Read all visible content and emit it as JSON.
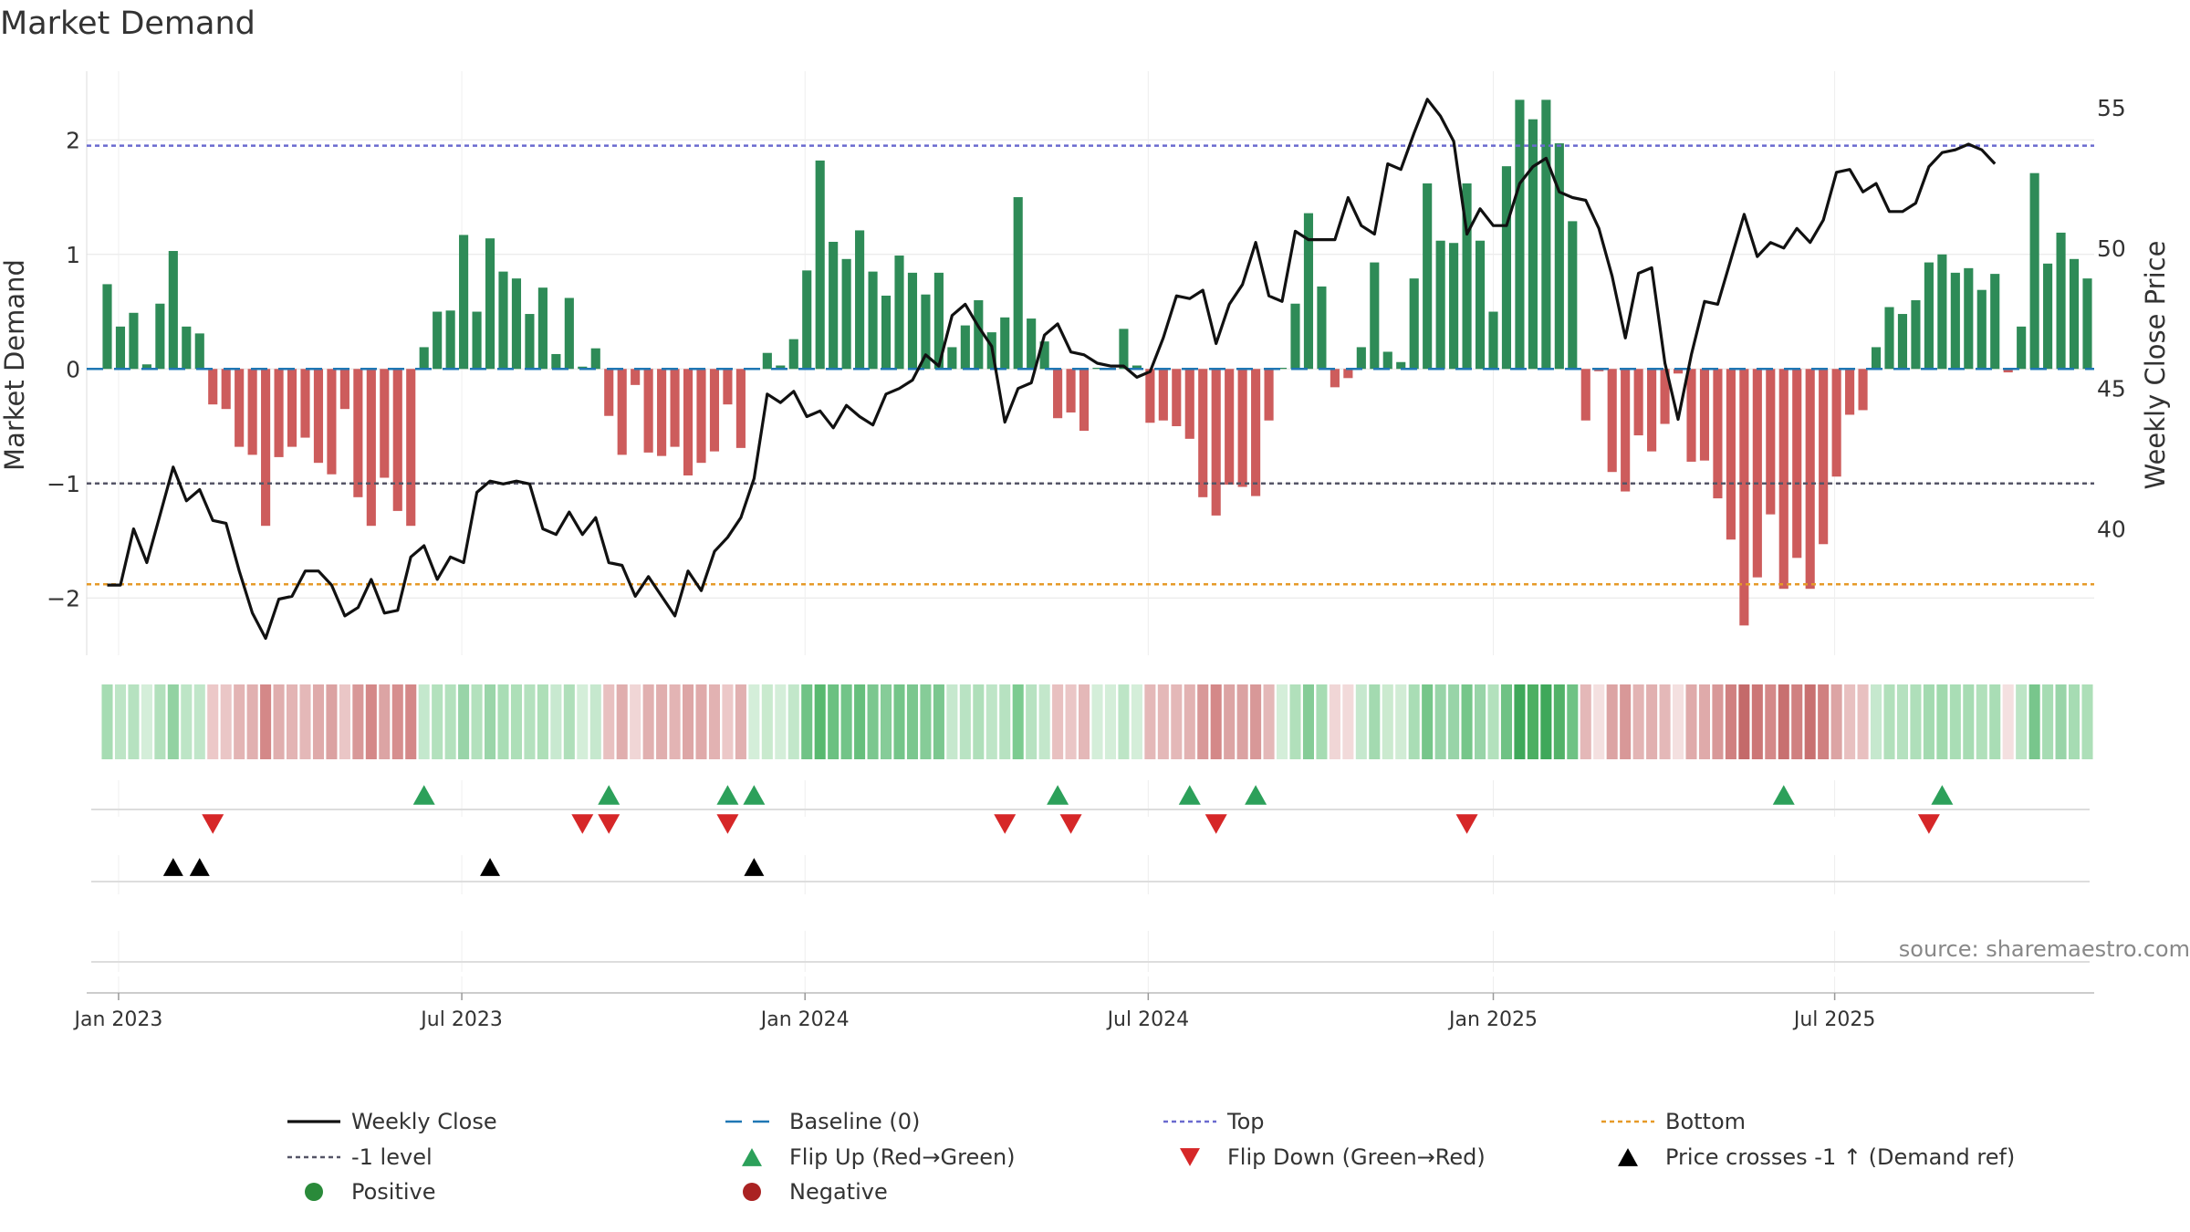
{
  "chart_data": {
    "type": "bar",
    "title": "Market Demand",
    "ylabel_left": "Market Demand",
    "ylabel_right": "Weekly Close Price",
    "ylim_left": [
      -2.5,
      2.6
    ],
    "ylim_right": [
      35.5,
      56.3
    ],
    "yticks_left": [
      -2,
      -1,
      0,
      1,
      2
    ],
    "yticks_left_labels": [
      "−2",
      "−1",
      "0",
      "1",
      "2"
    ],
    "yticks_right": [
      40,
      45,
      50,
      55
    ],
    "yticks_right_labels": [
      "40",
      "45",
      "50",
      "55"
    ],
    "x_start": "2022-12-26",
    "x_end": "2025-09-22",
    "xtick_labels": [
      "Jan 2023",
      "Jul 2023",
      "Jan 2024",
      "Jul 2024",
      "Jan 2025",
      "Jul 2025"
    ],
    "xtick_weeks": [
      0.86,
      26.86,
      52.86,
      78.86,
      105.0,
      130.86
    ],
    "top_level": 1.95,
    "minus1_level": -1.0,
    "bottom_level": -1.88,
    "demand": [
      0.74,
      0.37,
      0.49,
      0.04,
      0.57,
      1.03,
      0.37,
      0.31,
      -0.31,
      -0.35,
      -0.68,
      -0.75,
      -1.37,
      -0.77,
      -0.68,
      -0.6,
      -0.82,
      -0.92,
      -0.35,
      -1.12,
      -1.37,
      -0.95,
      -1.24,
      -1.37,
      0.19,
      0.5,
      0.51,
      1.17,
      0.5,
      1.14,
      0.85,
      0.79,
      0.48,
      0.71,
      0.13,
      0.62,
      0.02,
      0.18,
      -0.41,
      -0.75,
      -0.14,
      -0.73,
      -0.76,
      -0.68,
      -0.93,
      -0.82,
      -0.72,
      -0.31,
      -0.69,
      0.01,
      0.14,
      0.03,
      0.26,
      0.86,
      1.82,
      1.11,
      0.96,
      1.21,
      0.85,
      0.64,
      0.99,
      0.84,
      0.65,
      0.84,
      0.19,
      0.38,
      0.6,
      0.32,
      0.45,
      1.5,
      0.44,
      0.24,
      -0.43,
      -0.38,
      -0.54,
      0.01,
      0.01,
      0.35,
      0.03,
      -0.47,
      -0.45,
      -0.5,
      -0.61,
      -1.12,
      -1.28,
      -1.01,
      -1.03,
      -1.11,
      -0.45,
      0.01,
      0.57,
      1.36,
      0.72,
      -0.16,
      -0.08,
      0.19,
      0.93,
      0.15,
      0.06,
      0.79,
      1.62,
      1.12,
      1.1,
      1.62,
      1.12,
      0.5,
      1.77,
      2.35,
      2.18,
      2.35,
      1.97,
      1.29,
      -0.45,
      -0.02,
      -0.9,
      -1.07,
      -0.58,
      -0.72,
      -0.48,
      -0.04,
      -0.81,
      -0.8,
      -1.13,
      -1.49,
      -2.24,
      -1.82,
      -1.27,
      -1.92,
      -1.65,
      -1.92,
      -1.53,
      -0.94,
      -0.4,
      -0.36,
      0.19,
      0.54,
      0.48,
      0.6,
      0.93,
      1.0,
      0.84,
      0.88,
      0.69,
      0.83,
      -0.03,
      0.37,
      1.71,
      0.92,
      1.19,
      0.96,
      0.79
    ],
    "price": [
      38.0,
      38.0,
      40.0,
      38.8,
      40.5,
      42.2,
      41.0,
      41.4,
      40.3,
      40.2,
      38.5,
      37.0,
      36.1,
      37.5,
      37.6,
      38.5,
      38.5,
      38.0,
      36.9,
      37.2,
      38.2,
      37.0,
      37.1,
      39.0,
      39.4,
      38.2,
      39.0,
      38.8,
      41.3,
      41.7,
      41.6,
      41.7,
      41.6,
      40.0,
      39.8,
      40.6,
      39.8,
      40.4,
      38.8,
      38.7,
      37.6,
      38.3,
      37.6,
      36.9,
      38.5,
      37.8,
      39.2,
      39.7,
      40.4,
      41.8,
      44.8,
      44.5,
      44.9,
      44.0,
      44.2,
      43.6,
      44.4,
      44.0,
      43.7,
      44.8,
      45.0,
      45.3,
      46.2,
      45.8,
      47.6,
      48.0,
      47.2,
      46.5,
      43.8,
      45.0,
      45.2,
      46.9,
      47.3,
      46.3,
      46.2,
      45.9,
      45.8,
      45.8,
      45.4,
      45.6,
      46.8,
      48.3,
      48.2,
      48.5,
      46.6,
      48.0,
      48.7,
      50.2,
      48.3,
      48.1,
      50.6,
      50.3,
      50.3,
      50.3,
      51.8,
      50.8,
      50.5,
      53.0,
      52.8,
      54.1,
      55.3,
      54.7,
      53.8,
      50.5,
      51.4,
      50.8,
      50.8,
      52.3,
      52.9,
      53.2,
      52.0,
      51.8,
      51.7,
      50.7,
      49.0,
      46.8,
      49.1,
      49.3,
      45.9,
      43.9,
      46.2,
      48.1,
      48.0,
      49.6,
      51.2,
      49.7,
      50.2,
      50.0,
      50.7,
      50.2,
      51.0,
      52.7,
      52.8,
      52.0,
      52.3,
      51.3,
      51.3,
      51.6,
      52.9,
      53.4,
      53.5,
      53.7,
      53.5,
      53.0
    ],
    "heatmap_colors": [
      "#a6dcb3",
      "#bde5c6",
      "#b6e2c0",
      "#d4eed9",
      "#b2e0bc",
      "#92d2a2",
      "#bde5c6",
      "#c0e6c9",
      "#ecc8c8",
      "#eac6c6",
      "#e3b4b4",
      "#e1b0b0",
      "#d48888",
      "#e0aeae",
      "#e3b4b4",
      "#e4b8b8",
      "#dfaaaa",
      "#dba2a2",
      "#eac6c6",
      "#d89898",
      "#d48888",
      "#dca4a4",
      "#d68e8e",
      "#d48888",
      "#c4e8cd",
      "#b3e1bd",
      "#b3e1bd",
      "#98d4a8",
      "#b3e1bd",
      "#9ad5a9",
      "#a9ddb5",
      "#addfb8",
      "#b4e1be",
      "#aedfb8",
      "#c8e9d0",
      "#afdfba",
      "#d4eed9",
      "#c6e8ce",
      "#e8c0c0",
      "#e0aeae",
      "#f0d6d6",
      "#e1b0b0",
      "#e0aeae",
      "#e3b4b4",
      "#dda6a6",
      "#dfaaaa",
      "#e2b2b2",
      "#ecc8c8",
      "#e1b0b0",
      "#d4eed9",
      "#c9eace",
      "#d4eed9",
      "#c2e7ca",
      "#70c386",
      "#58b96f",
      "#6bc181",
      "#72c488",
      "#66bf7c",
      "#7bc78f",
      "#86cc98",
      "#74c589",
      "#7bc78f",
      "#86cc98",
      "#7bc78f",
      "#c6e8ce",
      "#b9e3c3",
      "#afdfba",
      "#bee5c7",
      "#b7e2c1",
      "#7ccb90",
      "#b7e2c1",
      "#c3e7cb",
      "#e8c0c0",
      "#eac6c6",
      "#e4b8b8",
      "#d4eed9",
      "#d4eed9",
      "#bde5c6",
      "#d4eed9",
      "#e4b8b8",
      "#e4b8b8",
      "#e4b8b8",
      "#e2b2b2",
      "#d89898",
      "#d48888",
      "#dca4a4",
      "#dba2a2",
      "#d89898",
      "#e4b8b8",
      "#d4eed9",
      "#b1e0bb",
      "#85cc97",
      "#a6dcb3",
      "#f0d6d6",
      "#f2dada",
      "#c6e8ce",
      "#a3dab0",
      "#cbeacf",
      "#d1ecd5",
      "#a9ddb5",
      "#76c68a",
      "#98d4a8",
      "#98d4a8",
      "#76c68a",
      "#98d4a8",
      "#b3e1bd",
      "#6fc284",
      "#3fa85a",
      "#4caf62",
      "#3fa85a",
      "#52b268",
      "#6fc284",
      "#e4b8b8",
      "#f4e0e0",
      "#dca4a4",
      "#d89898",
      "#e3b4b4",
      "#e1b0b0",
      "#e4b8b8",
      "#f4e0e0",
      "#dfaaaa",
      "#dfaaaa",
      "#d89898",
      "#d08080",
      "#c46a6a",
      "#cc7676",
      "#d48888",
      "#c87070",
      "#d08080",
      "#c87070",
      "#d08080",
      "#dca4a4",
      "#e8c0c0",
      "#e8c0c0",
      "#c6e8ce",
      "#b1e0bb",
      "#b5e1bf",
      "#afdfba",
      "#a3dab0",
      "#a0d9ad",
      "#a9ddb5",
      "#a7dcb3",
      "#b1e0bb",
      "#a9ddb5",
      "#f4e0e0",
      "#bde5c6",
      "#78c68c",
      "#a6dcb3",
      "#98d4a8",
      "#a6dcb3",
      "#addfb8"
    ],
    "flip_up_weeks": [
      24,
      38,
      47,
      49,
      72,
      82,
      87,
      127,
      139
    ],
    "flip_down_weeks": [
      8,
      36,
      38,
      47,
      68,
      73,
      84,
      103,
      138
    ],
    "price_cross_weeks": [
      5,
      7,
      29,
      49
    ],
    "legend": [
      {
        "label": "Weekly Close",
        "marker": "solid-line",
        "color": "#111111"
      },
      {
        "label": "Baseline (0)",
        "marker": "dashed-line",
        "color": "#1f77b4"
      },
      {
        "label": "Top",
        "marker": "dotted-line",
        "color": "#6a6acf"
      },
      {
        "label": "Bottom",
        "marker": "dotted-line",
        "color": "#e69a28"
      },
      {
        "label": "-1 level",
        "marker": "dotted-line",
        "color": "#555566"
      },
      {
        "label": "Flip Up (Red→Green)",
        "marker": "triangle-up",
        "color": "#2ca05a"
      },
      {
        "label": "Flip Down (Green→Red)",
        "marker": "triangle-down",
        "color": "#d62728"
      },
      {
        "label": "Price crosses -1 ↑ (Demand ref)",
        "marker": "triangle-up",
        "color": "#000000"
      },
      {
        "label": "Positive",
        "marker": "circle",
        "color": "#2a8a3a"
      },
      {
        "label": "Negative",
        "marker": "circle",
        "color": "#aa2222"
      }
    ],
    "source": "source: sharemaestro.com"
  },
  "colors": {
    "positive_bar": "#2e8b57",
    "negative_bar": "#cd5c5c",
    "price_line": "#111111",
    "baseline": "#1f77b4",
    "top_line": "#6a6acf",
    "bottom_line": "#e69a28",
    "minus1_line": "#555566",
    "grid": "#e6e6e6",
    "flip_up": "#2ca05a",
    "flip_down": "#d62728",
    "cross": "#000000"
  }
}
